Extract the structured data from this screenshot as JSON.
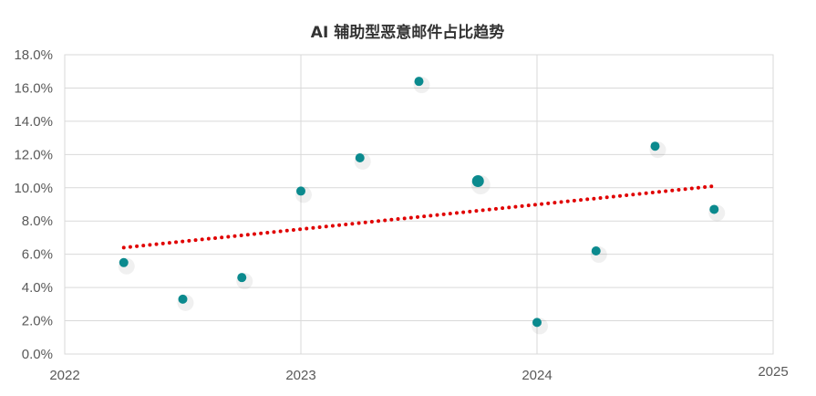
{
  "chart_data": {
    "type": "scatter",
    "title": "AI 辅助型恶意邮件占比趋势",
    "xlabel": "",
    "ylabel": "",
    "xlim": [
      2022,
      2025
    ],
    "ylim": [
      0,
      18
    ],
    "x_ticks": [
      "2022",
      "2023",
      "2024",
      "2025"
    ],
    "y_ticks": [
      "0.0%",
      "2.0%",
      "4.0%",
      "6.0%",
      "8.0%",
      "10.0%",
      "12.0%",
      "14.0%",
      "16.0%",
      "18.0%"
    ],
    "grid": true,
    "legend": "none",
    "series": [
      {
        "color": "#0b8a8e",
        "points": [
          {
            "x": 2022.25,
            "y": 5.5
          },
          {
            "x": 2022.5,
            "y": 3.3
          },
          {
            "x": 2022.75,
            "y": 4.6
          },
          {
            "x": 2023.0,
            "y": 9.8
          },
          {
            "x": 2023.25,
            "y": 11.8
          },
          {
            "x": 2023.5,
            "y": 16.4
          },
          {
            "x": 2023.75,
            "y": 10.4,
            "size": "large"
          },
          {
            "x": 2024.0,
            "y": 1.9
          },
          {
            "x": 2024.25,
            "y": 6.2
          },
          {
            "x": 2024.5,
            "y": 12.5
          },
          {
            "x": 2024.75,
            "y": 8.7
          }
        ]
      }
    ],
    "trendline": {
      "color": "#e00000",
      "style": "dotted",
      "start": {
        "x": 2022.25,
        "y": 6.4
      },
      "end": {
        "x": 2024.75,
        "y": 10.1
      }
    }
  }
}
